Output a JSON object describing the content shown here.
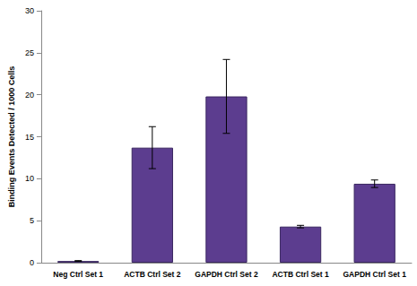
{
  "chart_data": {
    "type": "bar",
    "categories": [
      "Neg Ctrl Set 1",
      "ACTB Ctrl Set 2",
      "GAPDH Ctrl Set 2",
      "ACTB Ctrl Set 1",
      "GAPDH Ctrl Set 1"
    ],
    "values": [
      0.2,
      13.7,
      19.8,
      4.3,
      9.4
    ],
    "errors": [
      0.05,
      2.5,
      4.4,
      0.15,
      0.45
    ],
    "color": "#5c3d8f",
    "y_label": "Binding Events Detected / 1000 Cells",
    "ylim": [
      0,
      30
    ],
    "yticks": [
      0,
      5,
      10,
      15,
      20,
      25,
      30
    ],
    "grid": false
  }
}
